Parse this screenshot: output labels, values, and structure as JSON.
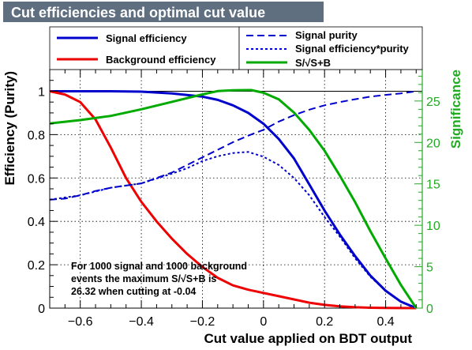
{
  "chart_data": {
    "type": "line",
    "title": "Cut efficiencies and optimal cut value",
    "xlabel": "Cut value applied on BDT output",
    "ylabel": "Efficiency (Purity)",
    "y2label": "Significance",
    "xlim": [
      -0.7,
      0.52
    ],
    "ylim": [
      0,
      1.1
    ],
    "y2lim": [
      0,
      28.8
    ],
    "x_ticks": [
      -0.6,
      -0.4,
      -0.2,
      0,
      0.2,
      0.4
    ],
    "x_tick_labels": [
      "−0.6",
      "−0.4",
      "−0.2",
      "0",
      "0.2",
      "0.4"
    ],
    "y_ticks": [
      0,
      0.2,
      0.4,
      0.6,
      0.8,
      1
    ],
    "y_tick_labels": [
      "0",
      "0.2",
      "0.4",
      "0.6",
      "0.8",
      "1"
    ],
    "y2_ticks": [
      0,
      5,
      10,
      15,
      20,
      25
    ],
    "y2_tick_labels": [
      "0",
      "5",
      "10",
      "15",
      "20",
      "25"
    ],
    "grid": true,
    "reference_line_y": 1,
    "colors": {
      "signal": "#0000cc",
      "background": "#ee0000",
      "significance": "#00aa00",
      "significance_axis": "#22aa22",
      "title_bg": "#5f6f80"
    },
    "series": [
      {
        "name": "Signal efficiency",
        "axis": "left",
        "style": "solid",
        "color": "#0000cc",
        "x": [
          -0.7,
          -0.6,
          -0.5,
          -0.4,
          -0.3,
          -0.2,
          -0.15,
          -0.1,
          -0.05,
          0,
          0.05,
          0.1,
          0.15,
          0.2,
          0.25,
          0.3,
          0.35,
          0.4,
          0.45,
          0.5
        ],
        "y": [
          1.0,
          1.0,
          1.0,
          0.998,
          0.99,
          0.975,
          0.96,
          0.935,
          0.9,
          0.85,
          0.78,
          0.69,
          0.57,
          0.45,
          0.34,
          0.24,
          0.15,
          0.08,
          0.03,
          0.0
        ]
      },
      {
        "name": "Background efficiency",
        "axis": "left",
        "style": "solid",
        "color": "#ee0000",
        "x": [
          -0.7,
          -0.65,
          -0.6,
          -0.55,
          -0.5,
          -0.45,
          -0.4,
          -0.35,
          -0.3,
          -0.25,
          -0.2,
          -0.15,
          -0.1,
          -0.05,
          0,
          0.05,
          0.1,
          0.15,
          0.2,
          0.25,
          0.3,
          0.35,
          0.4,
          0.45,
          0.5
        ],
        "y": [
          1.0,
          0.985,
          0.95,
          0.87,
          0.74,
          0.6,
          0.49,
          0.4,
          0.32,
          0.25,
          0.19,
          0.14,
          0.105,
          0.085,
          0.07,
          0.055,
          0.04,
          0.025,
          0.015,
          0.008,
          0.004,
          0.002,
          0.001,
          0.0005,
          0.0
        ]
      },
      {
        "name": "Signal purity",
        "axis": "left",
        "style": "dashed",
        "color": "#0000cc",
        "x": [
          -0.7,
          -0.65,
          -0.6,
          -0.55,
          -0.5,
          -0.45,
          -0.4,
          -0.35,
          -0.3,
          -0.25,
          -0.2,
          -0.15,
          -0.1,
          -0.05,
          0,
          0.05,
          0.1,
          0.15,
          0.2,
          0.25,
          0.3,
          0.35,
          0.4,
          0.45,
          0.5
        ],
        "y": [
          0.5,
          0.505,
          0.52,
          0.54,
          0.555,
          0.565,
          0.575,
          0.6,
          0.625,
          0.66,
          0.695,
          0.73,
          0.765,
          0.795,
          0.822,
          0.86,
          0.89,
          0.915,
          0.935,
          0.95,
          0.963,
          0.975,
          0.983,
          0.99,
          1.0
        ]
      },
      {
        "name": "Signal efficiency*purity",
        "axis": "left",
        "style": "dotted",
        "color": "#0000cc",
        "x": [
          -0.7,
          -0.6,
          -0.5,
          -0.4,
          -0.3,
          -0.25,
          -0.2,
          -0.15,
          -0.1,
          -0.05,
          0,
          0.05,
          0.1,
          0.15,
          0.2,
          0.25,
          0.3,
          0.35,
          0.4,
          0.45,
          0.5
        ],
        "y": [
          0.5,
          0.52,
          0.555,
          0.575,
          0.62,
          0.645,
          0.678,
          0.7,
          0.715,
          0.72,
          0.698,
          0.66,
          0.6,
          0.52,
          0.42,
          0.33,
          0.23,
          0.145,
          0.08,
          0.03,
          0.0
        ]
      },
      {
        "name": "S/√S+B",
        "axis": "right",
        "style": "solid",
        "color": "#00aa00",
        "x": [
          -0.7,
          -0.6,
          -0.5,
          -0.4,
          -0.3,
          -0.2,
          -0.15,
          -0.1,
          -0.05,
          -0.04,
          0,
          0.05,
          0.1,
          0.15,
          0.2,
          0.25,
          0.3,
          0.35,
          0.4,
          0.45,
          0.5
        ],
        "y": [
          22.3,
          22.7,
          23.2,
          24.0,
          24.9,
          25.8,
          26.2,
          26.3,
          26.32,
          26.32,
          26.0,
          25.2,
          23.6,
          21.5,
          19.0,
          16.0,
          12.8,
          9.3,
          6.0,
          2.8,
          0.0
        ]
      }
    ],
    "legend": {
      "left_entries": [
        "Signal efficiency",
        "Background efficiency"
      ],
      "right_entries": [
        "Signal purity",
        "Signal efficiency*purity",
        "S/√S+B"
      ]
    },
    "annotation": {
      "line1": "For 1000 signal and 1000 background",
      "line2": "events the maximum S/√S+B is",
      "line3": "26.32 when cutting at -0.04"
    }
  }
}
